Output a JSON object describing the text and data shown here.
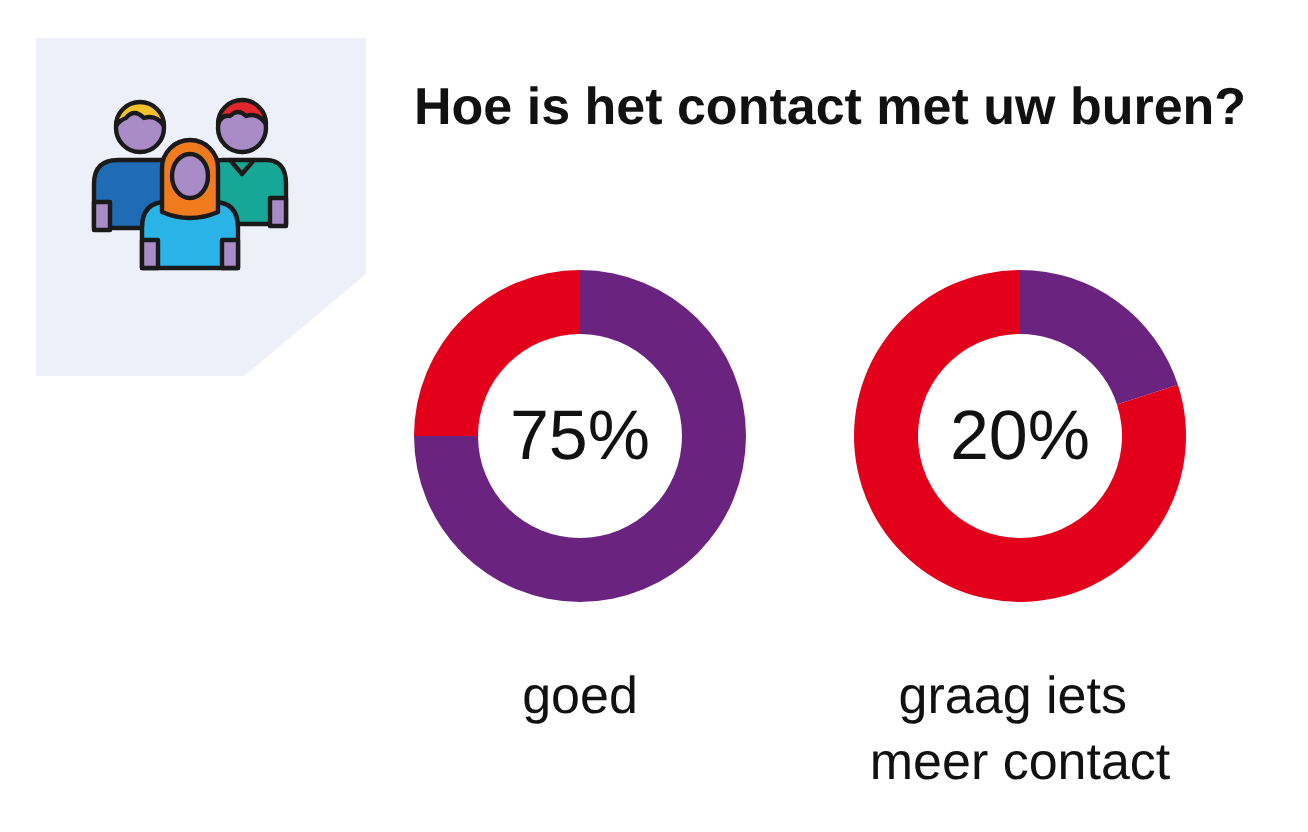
{
  "chart_data": [
    {
      "type": "donut",
      "title": "Hoe is het contact met uw buren?",
      "categories": [
        null,
        null
      ],
      "values": [
        75,
        25
      ],
      "colors": [
        "#6b2380",
        "#e2001a"
      ],
      "annotations": [
        "75%"
      ],
      "xlabel": "goed"
    },
    {
      "type": "donut",
      "categories": [
        null,
        null
      ],
      "values": [
        20,
        80
      ],
      "colors": [
        "#6b2380",
        "#e2001a"
      ],
      "annotations": [
        "20%"
      ],
      "xlabel": "graag iets meer contact"
    }
  ]
}
